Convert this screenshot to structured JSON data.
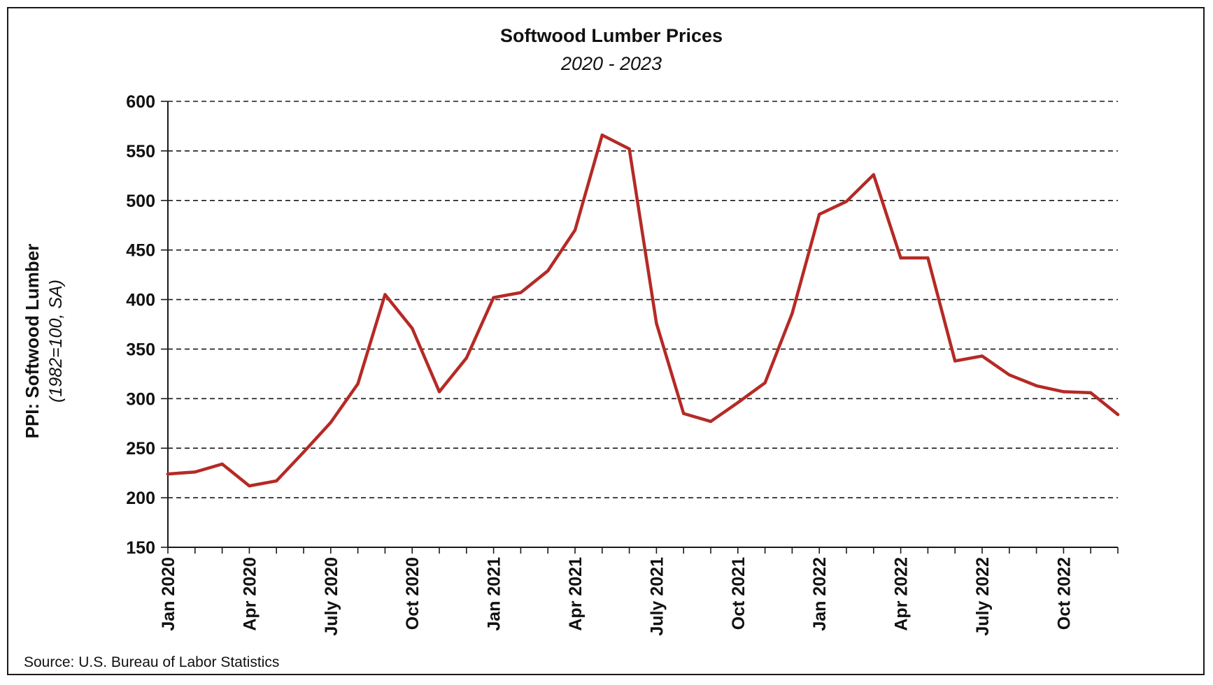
{
  "chart_data": {
    "type": "line",
    "title": "Softwood Lumber Prices",
    "subtitle": "2020 - 2023",
    "ylabel": "PPI: Softwood Lumber",
    "ylabel_sub": "(1982=100, SA)",
    "xlabel": "",
    "ylim": [
      150,
      600
    ],
    "yticks": [
      150,
      200,
      250,
      300,
      350,
      400,
      450,
      500,
      550,
      600
    ],
    "grid": "horizontal dashed",
    "x": [
      "Jan 2020",
      "Feb 2020",
      "Mar 2020",
      "Apr 2020",
      "May 2020",
      "Jun 2020",
      "July 2020",
      "Aug 2020",
      "Sep 2020",
      "Oct 2020",
      "Nov 2020",
      "Dec 2020",
      "Jan 2021",
      "Feb 2021",
      "Mar 2021",
      "Apr 2021",
      "May 2021",
      "Jun 2021",
      "July 2021",
      "Aug 2021",
      "Sep 2021",
      "Oct 2021",
      "Nov 2021",
      "Dec 2021",
      "Jan 2022",
      "Feb 2022",
      "Mar 2022",
      "Apr 2022",
      "May 2022",
      "Jun 2022",
      "July 2022",
      "Aug 2022",
      "Sep 2022",
      "Oct 2022",
      "Nov 2022",
      "Dec 2022"
    ],
    "xtick_labels": [
      {
        "index": 0,
        "label": "Jan 2020"
      },
      {
        "index": 3,
        "label": "Apr 2020"
      },
      {
        "index": 6,
        "label": "July 2020"
      },
      {
        "index": 9,
        "label": "Oct 2020"
      },
      {
        "index": 12,
        "label": "Jan 2021"
      },
      {
        "index": 15,
        "label": "Apr 2021"
      },
      {
        "index": 18,
        "label": "July 2021"
      },
      {
        "index": 21,
        "label": "Oct 2021"
      },
      {
        "index": 24,
        "label": "Jan 2022"
      },
      {
        "index": 27,
        "label": "Apr 2022"
      },
      {
        "index": 30,
        "label": "July 2022"
      },
      {
        "index": 33,
        "label": "Oct 2022"
      }
    ],
    "series": [
      {
        "color": "#b52a25",
        "values": [
          224,
          226,
          234,
          212,
          217,
          246,
          276,
          315,
          405,
          371,
          307,
          341,
          402,
          407,
          429,
          470,
          566,
          552,
          376,
          285,
          277,
          296,
          316,
          386,
          486,
          499,
          526,
          442,
          442,
          338,
          343,
          324,
          313,
          307,
          306,
          284
        ]
      }
    ]
  },
  "source": "Source: U.S. Bureau of Labor Statistics"
}
